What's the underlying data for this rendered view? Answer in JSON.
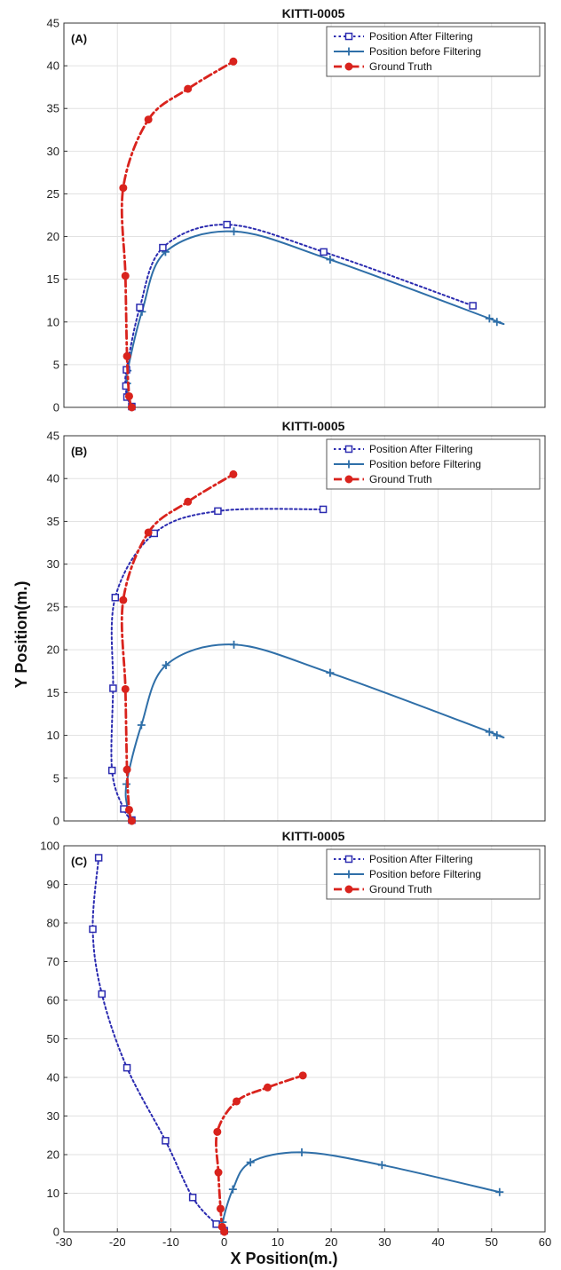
{
  "figure": {
    "ylabel": "Y Position(m.)",
    "xlabel": "X Position(m.)"
  },
  "colors": {
    "after_filtering": "#2b2bb0",
    "before_filtering": "#2f6fa8",
    "ground_truth": "#d9231d",
    "grid": "#e2e2e2"
  },
  "chart_data": [
    {
      "type": "line",
      "title": "KITTI-0005",
      "panel_label": "(A)",
      "xlim": [
        -30,
        60
      ],
      "ylim": [
        0,
        45
      ],
      "yticks": [
        0,
        5,
        10,
        15,
        20,
        25,
        30,
        35,
        40,
        45
      ],
      "xticks_visible": false,
      "grid": true,
      "legend": "top-right",
      "series": [
        {
          "name": "Position After Filtering",
          "style": "dotted",
          "marker": "square",
          "x": [
            -17.3,
            -18.2,
            -18.4,
            -18.3,
            -15.8,
            -11.5,
            0.5,
            18.6,
            46.5
          ],
          "y": [
            0.1,
            1.2,
            2.5,
            4.4,
            11.7,
            18.7,
            21.4,
            18.2,
            11.9
          ]
        },
        {
          "name": "Position before Filtering",
          "style": "solid",
          "marker": "plus",
          "x": [
            -17.3,
            -18.0,
            -18.2,
            -18.1,
            -15.4,
            -11.0,
            1.8,
            19.8,
            49.6,
            51.0
          ],
          "y": [
            0.0,
            1.3,
            2.8,
            4.3,
            11.2,
            18.2,
            20.6,
            17.3,
            10.4,
            10.0
          ]
        },
        {
          "name": "Ground Truth",
          "style": "dashdot",
          "marker": "circle",
          "x": [
            -17.3,
            -17.8,
            -18.2,
            -18.5,
            -18.9,
            -14.2,
            -6.8,
            1.7
          ],
          "y": [
            0.0,
            1.3,
            6.0,
            15.4,
            25.7,
            33.7,
            37.3,
            40.5
          ]
        }
      ]
    },
    {
      "type": "line",
      "title": "KITTI-0005",
      "panel_label": "(B)",
      "xlim": [
        -30,
        60
      ],
      "ylim": [
        0,
        45
      ],
      "yticks": [
        0,
        5,
        10,
        15,
        20,
        25,
        30,
        35,
        40,
        45
      ],
      "xticks_visible": false,
      "grid": true,
      "legend": "top-right",
      "series": [
        {
          "name": "Position After Filtering",
          "style": "dotted",
          "marker": "square",
          "x": [
            -17.3,
            -18.8,
            -21.0,
            -20.8,
            -20.4,
            -13.1,
            -1.2,
            18.5
          ],
          "y": [
            0.1,
            1.4,
            5.9,
            15.5,
            26.1,
            33.6,
            36.2,
            36.4
          ]
        },
        {
          "name": "Position before Filtering",
          "style": "solid",
          "marker": "plus",
          "x": [
            -17.3,
            -18.0,
            -18.3,
            -15.5,
            -10.9,
            1.8,
            19.8,
            49.6,
            51.0
          ],
          "y": [
            0.0,
            1.3,
            4.3,
            11.2,
            18.2,
            20.6,
            17.3,
            10.4,
            10.0
          ]
        },
        {
          "name": "Ground Truth",
          "style": "dashdot",
          "marker": "circle",
          "x": [
            -17.3,
            -17.8,
            -18.2,
            -18.5,
            -18.9,
            -14.2,
            -6.8,
            1.7
          ],
          "y": [
            0.0,
            1.3,
            6.0,
            15.4,
            25.8,
            33.7,
            37.3,
            40.5
          ]
        }
      ]
    },
    {
      "type": "line",
      "title": "KITTI-0005",
      "panel_label": "(C)",
      "xlim": [
        -30,
        60
      ],
      "ylim": [
        0,
        100
      ],
      "xticks": [
        -30,
        -20,
        -10,
        0,
        10,
        20,
        30,
        40,
        50,
        60
      ],
      "yticks": [
        0,
        10,
        20,
        30,
        40,
        50,
        60,
        70,
        80,
        90,
        100
      ],
      "grid": true,
      "legend": "top-right",
      "series": [
        {
          "name": "Position After Filtering",
          "style": "dotted",
          "marker": "square",
          "x": [
            0.0,
            -1.5,
            -5.9,
            -11.0,
            -18.2,
            -22.9,
            -24.6,
            -23.5
          ],
          "y": [
            0.3,
            2.0,
            8.9,
            23.6,
            42.5,
            61.6,
            78.4,
            96.9
          ]
        },
        {
          "name": "Position before Filtering",
          "style": "solid",
          "marker": "plus",
          "x": [
            0.0,
            -0.3,
            1.6,
            4.9,
            14.5,
            29.5,
            51.5
          ],
          "y": [
            0.0,
            2.5,
            11.0,
            18.0,
            20.6,
            17.3,
            10.3
          ]
        },
        {
          "name": "Ground Truth",
          "style": "dashdot",
          "marker": "circle",
          "x": [
            0.0,
            -0.4,
            -0.7,
            -1.1,
            -1.3,
            2.3,
            8.1,
            14.7
          ],
          "y": [
            0.0,
            1.3,
            6.0,
            15.4,
            25.9,
            33.8,
            37.4,
            40.5
          ]
        }
      ]
    }
  ]
}
